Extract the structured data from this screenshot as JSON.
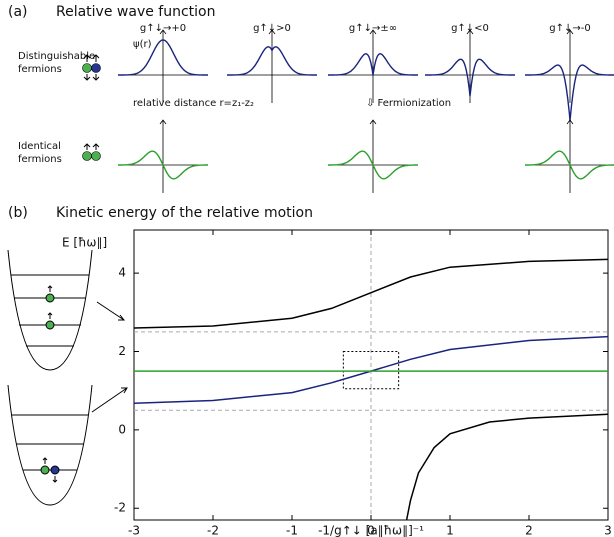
{
  "panel_a": {
    "label": "(a)",
    "title": "Relative wave function",
    "row_labels": [
      "Distinguishable",
      "fermions",
      "Identical",
      "fermions"
    ],
    "columns": [
      "g↑↓→+0",
      "g↑↓>0",
      "g↑↓→±∞",
      "g↑↓<0",
      "g↑↓→-0"
    ],
    "psi_label": "ψ(r)",
    "distance_label": "relative distance r=z₁-z₂",
    "annotation": "⇩ Fermionization"
  },
  "chart_data": {
    "type": "line",
    "label": "(b)",
    "title": "Kinetic energy of the relative motion",
    "ylabel": "E [ħω∥]",
    "xlabel": "-1/g↑↓ [a∥ħω∥]⁻¹",
    "xlim": [
      -3,
      3
    ],
    "ylim": [
      -2.3,
      5.1
    ],
    "xticks": [
      -3,
      -2,
      -1,
      0,
      1,
      2,
      3
    ],
    "yticks": [
      -2,
      0,
      2,
      4
    ],
    "hlines": [
      0.5,
      2.5
    ],
    "vlines": [
      0
    ],
    "box": {
      "x": [
        -0.35,
        0.35
      ],
      "y": [
        1.05,
        2.0
      ]
    },
    "series": [
      {
        "color": "#000000",
        "x": [
          -3,
          -2,
          -1,
          -0.5,
          0,
          0.5,
          1,
          2,
          3
        ],
        "values": [
          2.6,
          2.65,
          2.85,
          3.1,
          3.5,
          3.9,
          4.15,
          4.3,
          4.35
        ]
      },
      {
        "color": "#1a237e",
        "x": [
          -3,
          -2,
          -1,
          -0.5,
          0,
          0.5,
          1,
          2,
          3
        ],
        "values": [
          0.68,
          0.75,
          0.95,
          1.2,
          1.5,
          1.8,
          2.05,
          2.28,
          2.38
        ]
      },
      {
        "color": "#2ca02c",
        "x": [
          -3,
          3
        ],
        "values": [
          1.5,
          1.5
        ]
      },
      {
        "color": "#000000",
        "x": [
          0.45,
          0.5,
          0.6,
          0.8,
          1,
          1.5,
          2,
          3
        ],
        "values": [
          -2.3,
          -1.8,
          -1.1,
          -0.45,
          -0.1,
          0.2,
          0.3,
          0.4
        ]
      }
    ]
  }
}
